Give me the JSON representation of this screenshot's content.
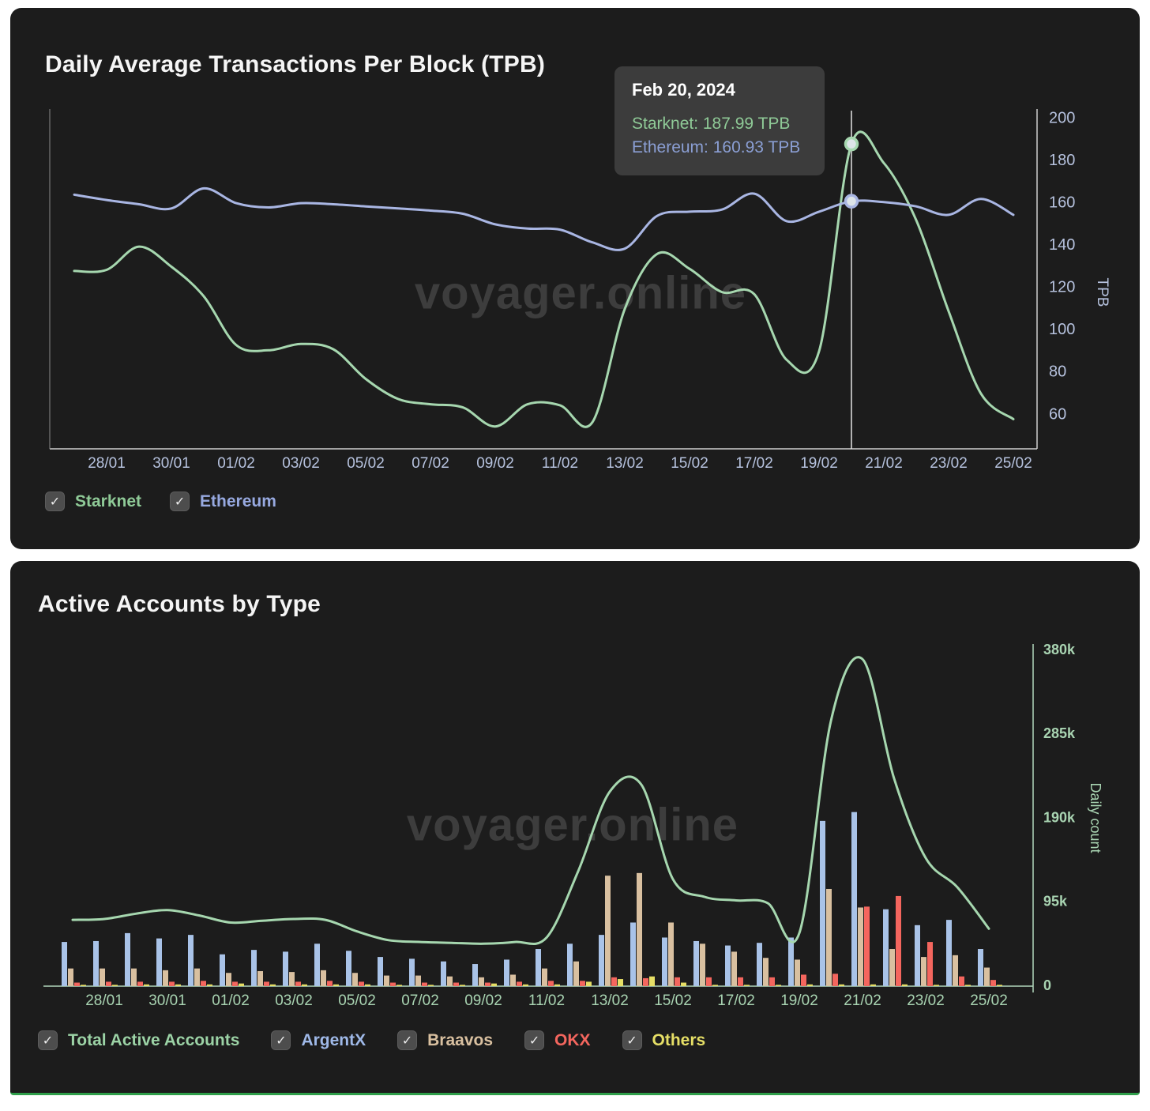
{
  "card1": {
    "title": "Daily Average Transactions Per Block (TPB)",
    "watermark": "voyager.online",
    "tooltip": {
      "title": "Feb 20, 2024",
      "rows": [
        {
          "text": "Starknet: 187.99 TPB",
          "color": "#8fca97"
        },
        {
          "text": "Ethereum: 160.93 TPB",
          "color": "#8b9fd4"
        }
      ]
    },
    "legend": [
      {
        "label": "Starknet",
        "color": "#8fca97"
      },
      {
        "label": "Ethereum",
        "color": "#97a9e0"
      }
    ]
  },
  "card2": {
    "title": "Active Accounts by Type",
    "watermark": "voyager.online",
    "legend": [
      {
        "label": "Total Active Accounts",
        "color": "#9cd3a6"
      },
      {
        "label": "ArgentX",
        "color": "#9fb9e8"
      },
      {
        "label": "Braavos",
        "color": "#d9c0a0"
      },
      {
        "label": "OKX",
        "color": "#f4665e"
      },
      {
        "label": "Others",
        "color": "#e6df66"
      }
    ]
  },
  "chart_data": [
    {
      "type": "line",
      "title": "Daily Average Transactions Per Block (TPB)",
      "x": [
        "27/01",
        "28/01",
        "29/01",
        "30/01",
        "31/01",
        "01/02",
        "02/02",
        "03/02",
        "04/02",
        "05/02",
        "06/02",
        "07/02",
        "08/02",
        "09/02",
        "10/02",
        "11/02",
        "12/02",
        "13/02",
        "14/02",
        "15/02",
        "16/02",
        "17/02",
        "18/02",
        "19/02",
        "20/02",
        "21/02",
        "22/02",
        "23/02",
        "24/02",
        "25/02"
      ],
      "x_tick_labels": [
        "28/01",
        "30/01",
        "01/02",
        "03/02",
        "05/02",
        "07/02",
        "09/02",
        "11/02",
        "13/02",
        "15/02",
        "17/02",
        "19/02",
        "21/02",
        "23/02",
        "25/02"
      ],
      "ylabel": "TPB",
      "yticks": [
        200,
        180,
        160,
        140,
        120,
        100,
        80,
        60
      ],
      "ylim": [
        44,
        204
      ],
      "grid": false,
      "legend_position": "bottom",
      "series": [
        {
          "name": "Starknet",
          "color": "#a6d7af",
          "values": [
            128,
            128.5,
            139.5,
            130,
            116,
            93,
            90.5,
            93.5,
            91,
            77,
            67.5,
            65,
            63.5,
            54.5,
            65,
            64.5,
            56.5,
            110,
            136,
            129,
            118,
            117,
            86,
            90,
            187.99,
            179,
            152,
            109,
            70,
            58
          ]
        },
        {
          "name": "Ethereum",
          "color": "#a9b6e3",
          "values": [
            164,
            161.5,
            159.5,
            157.5,
            167,
            160,
            158,
            160,
            159.5,
            158.5,
            157.5,
            156.5,
            155,
            150,
            148,
            147.5,
            141.5,
            138.5,
            154,
            156,
            157,
            164.5,
            151.5,
            156,
            160.93,
            160.5,
            158.5,
            154.5,
            162,
            154.5
          ]
        }
      ],
      "highlight": {
        "date": "Feb 20, 2024",
        "x_index": 24,
        "x_label": "20/02",
        "starknet_tpb": 187.99,
        "ethereum_tpb": 160.93
      }
    },
    {
      "type": "bar+line",
      "title": "Active Accounts by Type",
      "unit": "thousands",
      "x": [
        "27/01",
        "28/01",
        "29/01",
        "30/01",
        "31/01",
        "01/02",
        "02/02",
        "03/02",
        "04/02",
        "05/02",
        "06/02",
        "07/02",
        "08/02",
        "09/02",
        "10/02",
        "11/02",
        "12/02",
        "13/02",
        "14/02",
        "15/02",
        "16/02",
        "17/02",
        "18/02",
        "19/02",
        "20/02",
        "21/02",
        "22/02",
        "23/02",
        "24/02",
        "25/02"
      ],
      "x_tick_labels": [
        "28/01",
        "30/01",
        "01/02",
        "03/02",
        "05/02",
        "07/02",
        "09/02",
        "11/02",
        "13/02",
        "15/02",
        "17/02",
        "19/02",
        "21/02",
        "23/02",
        "25/02"
      ],
      "ylabel": "Daily count",
      "yticks": [
        {
          "v": 0,
          "label": "0"
        },
        {
          "v": 95,
          "label": "95k"
        },
        {
          "v": 190,
          "label": "190k"
        },
        {
          "v": 285,
          "label": "285k"
        },
        {
          "v": 380,
          "label": "380k"
        }
      ],
      "ylim": [
        0,
        380
      ],
      "grid": false,
      "legend_position": "bottom",
      "line_series": {
        "name": "Total Active Accounts",
        "color": "#a6d7af",
        "values": [
          75,
          76,
          82,
          86,
          80,
          72,
          74,
          76,
          75,
          62,
          52,
          50,
          49,
          48,
          50,
          55,
          130,
          220,
          228,
          121,
          101,
          97,
          94,
          60,
          300,
          370,
          235,
          145,
          112,
          65
        ]
      },
      "bar_series": [
        {
          "name": "ArgentX",
          "color": "#a9c3e8",
          "values": [
            50,
            51,
            60,
            54,
            58,
            36,
            41,
            39,
            48,
            40,
            33,
            31,
            28,
            25,
            30,
            42,
            48,
            58,
            72,
            55,
            51,
            46,
            49,
            55,
            187,
            197,
            87,
            69,
            75,
            42
          ]
        },
        {
          "name": "Braavos",
          "color": "#d9c0a0",
          "values": [
            20,
            20,
            20,
            18,
            20,
            15,
            17,
            16,
            18,
            15,
            12,
            12,
            11,
            10,
            13,
            20,
            28,
            125,
            128,
            72,
            48,
            39,
            32,
            30,
            110,
            89,
            42,
            33,
            35,
            21
          ]
        },
        {
          "name": "OKX",
          "color": "#f4665e",
          "values": [
            4,
            5,
            5,
            5,
            6,
            5,
            5,
            5,
            6,
            5,
            4,
            4,
            4,
            4,
            5,
            6,
            6,
            10,
            9,
            10,
            10,
            10,
            10,
            13,
            14,
            90,
            102,
            50,
            11,
            7
          ]
        },
        {
          "name": "Others",
          "color": "#e6df66",
          "values": [
            1.5,
            1.5,
            2,
            2,
            2,
            3,
            2,
            2,
            2,
            2,
            1.5,
            1.5,
            1.5,
            3,
            2,
            2,
            5,
            8,
            11,
            4,
            1.5,
            1.5,
            1.5,
            2,
            2,
            2,
            2,
            1.5,
            1.5,
            1.5
          ]
        }
      ]
    }
  ]
}
